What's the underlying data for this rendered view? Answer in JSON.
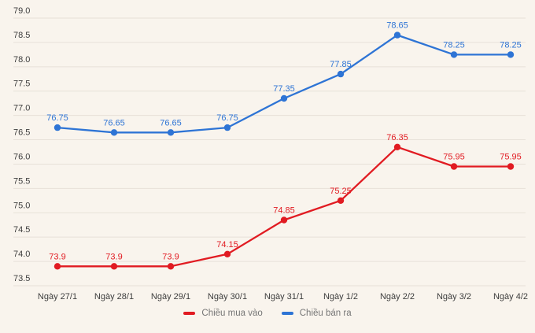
{
  "chart_data": {
    "type": "line",
    "categories": [
      "Ngày 27/1",
      "Ngày 28/1",
      "Ngày 29/1",
      "Ngày 30/1",
      "Ngày 31/1",
      "Ngày 1/2",
      "Ngày 2/2",
      "Ngày 3/2",
      "Ngày 4/2"
    ],
    "series": [
      {
        "name": "Chiều mua vào",
        "color": "#e11b22",
        "values": [
          73.9,
          73.9,
          73.9,
          74.15,
          74.85,
          75.25,
          76.35,
          75.95,
          75.95
        ],
        "labels": [
          "73.9",
          "73.9",
          "73.9",
          "74.15",
          "74.85",
          "75.25",
          "76.35",
          "75.95",
          "75.95"
        ]
      },
      {
        "name": "Chiều bán ra",
        "color": "#2e74d5",
        "values": [
          76.75,
          76.65,
          76.65,
          76.75,
          77.35,
          77.85,
          78.65,
          78.25,
          78.25
        ],
        "labels": [
          "76.75",
          "76.65",
          "76.65",
          "76.75",
          "77.35",
          "77.85",
          "78.65",
          "78.25",
          "78.25"
        ]
      }
    ],
    "title": "",
    "xlabel": "",
    "ylabel": "",
    "ylim": [
      73.5,
      79.0
    ],
    "ytick_step": 0.5,
    "yticks": [
      "79.0",
      "78.5",
      "78.0",
      "77.5",
      "77.0",
      "76.5",
      "76.0",
      "75.5",
      "75.0",
      "74.5",
      "74.0",
      "73.5"
    ],
    "grid": true,
    "legend_position": "bottom"
  },
  "colors": {
    "background": "#f9f4ed",
    "gridline": "#e7e1d8",
    "axis_text": "#3d3d3d",
    "legend_text": "#767676"
  }
}
